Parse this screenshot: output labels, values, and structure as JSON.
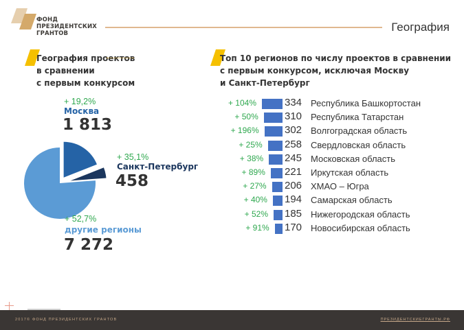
{
  "header": {
    "logo_text": [
      "ФОНД",
      "ПРЕЗИДЕНТСКИХ",
      "ГРАНТОВ"
    ],
    "title": "География"
  },
  "left_section": {
    "title_lines": [
      "География проектов",
      "в сравнении",
      "с первым конкурсом"
    ]
  },
  "right_section": {
    "title_lines": [
      "Топ 10 регионов по числу проектов в сравнении",
      "с первым конкурсом, исключая Москву",
      "и Санкт-Петербург"
    ]
  },
  "colors": {
    "moscow": "#2563a6",
    "spb": "#1b365d",
    "other": "#5b9bd5",
    "bar": "#4472c4",
    "growth": "#2fa84f",
    "accent_gold": "#d4a96a",
    "accent_yellow": "#f5c000"
  },
  "chart_data": [
    {
      "type": "pie",
      "title": "География проектов в сравнении с первым конкурсом",
      "slices": [
        {
          "name": "Москва",
          "value": 1813,
          "value_label": "1 813",
          "growth": "+ 19,2%",
          "exploded": true
        },
        {
          "name": "Санкт-Петербург",
          "value": 458,
          "value_label": "458",
          "growth": "+ 35,1%",
          "exploded": true
        },
        {
          "name": "другие регионы",
          "value": 7272,
          "value_label": "7 272",
          "growth": "+ 52,7%",
          "exploded": false
        }
      ]
    },
    {
      "type": "bar",
      "orientation": "horizontal",
      "title": "Топ 10 регионов по числу проектов в сравнении с первым конкурсом, исключая Москву и Санкт-Петербург",
      "categories": [
        "Республика Башкортостан",
        "Республика Татарстан",
        "Волгоградская область",
        "Свердловская область",
        "Московская область",
        "Иркутская область",
        "ХМАО – Югра",
        "Самарская область",
        "Нижегородская область",
        "Новосибирская область"
      ],
      "values": [
        334,
        310,
        302,
        258,
        245,
        221,
        206,
        194,
        185,
        170
      ],
      "growth": [
        "+ 104%",
        "+ 50%",
        "+ 196%",
        "+ 25%",
        "+ 38%",
        "+ 89%",
        "+ 27%",
        "+ 40%",
        "+ 52%",
        "+ 91%"
      ]
    }
  ],
  "footer": {
    "left": "2017© ФОНД ПРЕЗИДЕНТСКИХ ГРАНТОВ",
    "right": "ПРЕЗИДЕНТСКИЕГРАНТЫ.РФ"
  }
}
